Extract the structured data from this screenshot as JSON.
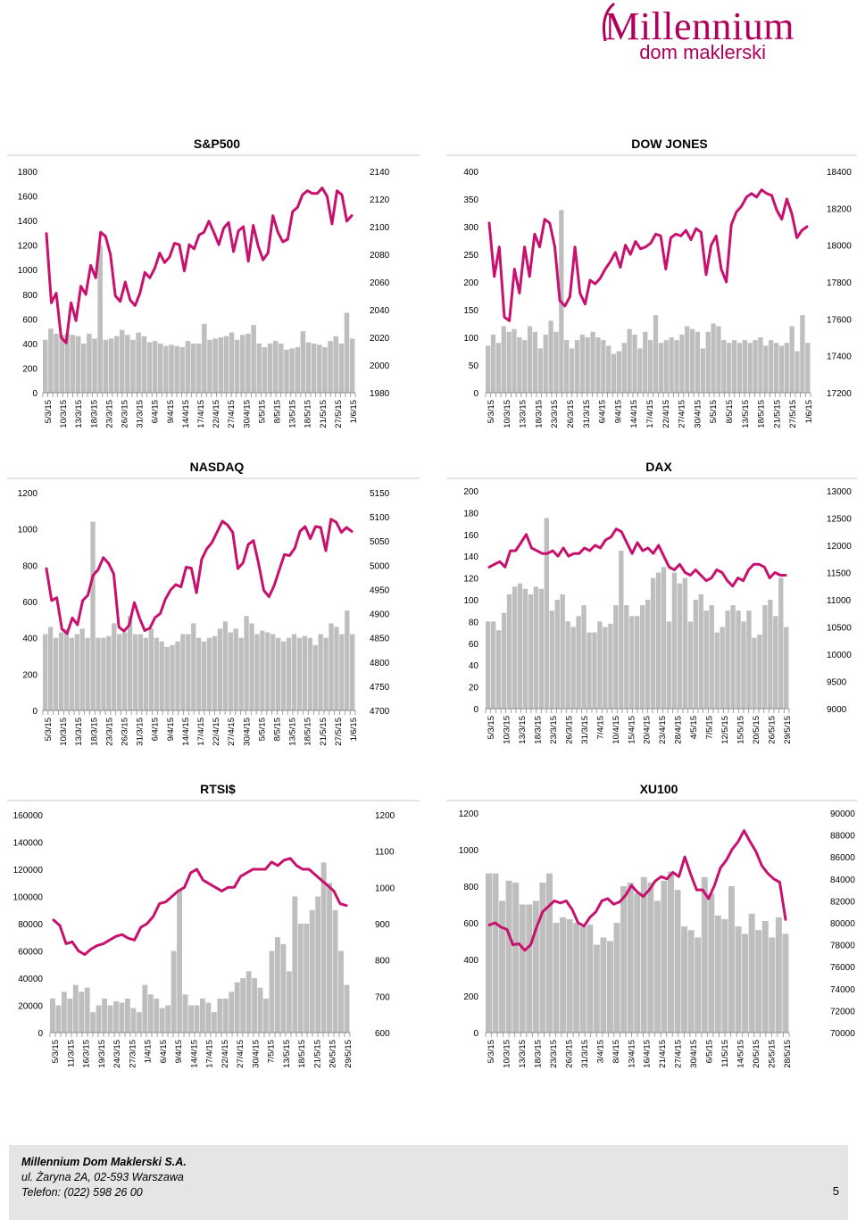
{
  "logo": {
    "brand": "Millennium",
    "sub": "dom maklerski"
  },
  "footer": {
    "company": "Millennium Dom Maklerski S.A.",
    "address": "ul. Żaryna 2A, 02-593 Warszawa",
    "phone": "Telefon: (022) 598 26 00",
    "page": "5"
  },
  "colors": {
    "line": "#c8106e",
    "bar": "#bebebe"
  },
  "chart_data": [
    {
      "id": "sp500",
      "type": "bar+line",
      "title": "S&P500",
      "left_ticks": [
        "1800",
        "1600",
        "1400",
        "1200",
        "1000",
        "800",
        "600",
        "400",
        "200",
        "0"
      ],
      "right_ticks": [
        "2140",
        "2120",
        "2100",
        "2080",
        "2060",
        "2040",
        "2020",
        "2000",
        "1980"
      ],
      "x_labels": [
        "5/3/15",
        "10/3/15",
        "13/3/15",
        "18/3/15",
        "23/3/15",
        "26/3/15",
        "31/3/15",
        "6/4/15",
        "9/4/15",
        "14/4/15",
        "17/4/15",
        "22/4/15",
        "27/4/15",
        "30/4/15",
        "5/5/15",
        "8/5/15",
        "13/5/15",
        "18/5/15",
        "21/5/15",
        "27/5/15",
        "1/6/15"
      ],
      "left_range": [
        0,
        1800
      ],
      "right_range": [
        1980,
        2140
      ],
      "bars": [
        430,
        520,
        480,
        470,
        480,
        470,
        460,
        400,
        480,
        440,
        1200,
        430,
        440,
        460,
        510,
        470,
        430,
        490,
        460,
        410,
        420,
        400,
        380,
        390,
        380,
        370,
        420,
        400,
        400,
        560,
        430,
        440,
        450,
        460,
        490,
        430,
        470,
        480,
        550,
        400,
        370,
        400,
        420,
        400,
        350,
        360,
        370,
        500,
        410,
        400,
        390,
        370,
        420,
        460,
        400,
        650,
        440
      ],
      "line": [
        2095,
        2045,
        2052,
        2020,
        2016,
        2045,
        2032,
        2057,
        2051,
        2072,
        2063,
        2096,
        2093,
        2080,
        2050,
        2046,
        2060,
        2047,
        2043,
        2052,
        2067,
        2063,
        2070,
        2081,
        2074,
        2078,
        2088,
        2087,
        2068,
        2087,
        2084,
        2094,
        2096,
        2104,
        2096,
        2087,
        2099,
        2103,
        2082,
        2097,
        2100,
        2075,
        2101,
        2086,
        2076,
        2081,
        2108,
        2096,
        2089,
        2091,
        2111,
        2114,
        2123,
        2126,
        2124,
        2124,
        2128,
        2122,
        2102,
        2126,
        2123,
        2104,
        2108
      ],
      "x_range_steps": 63
    },
    {
      "id": "dowjones",
      "type": "bar+line",
      "title": "DOW JONES",
      "left_ticks": [
        "400",
        "350",
        "300",
        "250",
        "200",
        "150",
        "100",
        "50",
        "0"
      ],
      "right_ticks": [
        "18400",
        "18200",
        "18000",
        "17800",
        "17600",
        "17400",
        "17200"
      ],
      "x_labels": [
        "5/3/15",
        "10/3/15",
        "13/3/15",
        "18/3/15",
        "23/3/15",
        "26/3/15",
        "31/3/15",
        "6/4/15",
        "9/4/15",
        "14/4/15",
        "17/4/15",
        "22/4/15",
        "27/4/15",
        "30/4/15",
        "5/5/15",
        "8/5/15",
        "13/5/15",
        "18/5/15",
        "21/5/15",
        "27/5/15",
        "1/6/15"
      ],
      "left_range": [
        0,
        400
      ],
      "right_range": [
        17200,
        18400
      ],
      "bars": [
        85,
        105,
        90,
        120,
        110,
        115,
        100,
        95,
        120,
        110,
        80,
        105,
        130,
        110,
        330,
        95,
        80,
        95,
        105,
        100,
        110,
        100,
        95,
        85,
        70,
        75,
        90,
        115,
        105,
        80,
        110,
        95,
        140,
        90,
        95,
        100,
        95,
        105,
        120,
        115,
        110,
        80,
        110,
        125,
        120,
        95,
        90,
        95,
        90,
        95,
        90,
        95,
        100,
        85,
        95,
        90,
        85,
        90,
        120,
        75,
        140,
        90
      ],
      "line": [
        18120,
        17830,
        17990,
        17610,
        17590,
        17870,
        17740,
        17990,
        17830,
        18060,
        17990,
        18140,
        18120,
        17990,
        17700,
        17670,
        17720,
        17990,
        17740,
        17680,
        17810,
        17790,
        17820,
        17870,
        17910,
        17960,
        17880,
        18000,
        17950,
        18020,
        17980,
        17990,
        18010,
        18060,
        18050,
        17870,
        18040,
        18060,
        18050,
        18080,
        18030,
        18090,
        18070,
        17840,
        18000,
        18050,
        17870,
        17800,
        18110,
        18180,
        18210,
        18260,
        18280,
        18260,
        18300,
        18280,
        18270,
        18190,
        18140,
        18250,
        18170,
        18040,
        18080,
        18100
      ],
      "x_range_steps": 64
    },
    {
      "id": "nasdaq",
      "type": "bar+line",
      "title": "NASDAQ",
      "left_ticks": [
        "1200",
        "1000",
        "800",
        "600",
        "400",
        "200",
        "0"
      ],
      "right_ticks": [
        "5150",
        "5100",
        "5050",
        "5000",
        "4950",
        "4900",
        "4850",
        "4800",
        "4750",
        "4700"
      ],
      "x_labels": [
        "5/3/15",
        "10/3/15",
        "13/3/15",
        "18/3/15",
        "23/3/15",
        "26/3/15",
        "31/3/15",
        "6/4/15",
        "9/4/15",
        "14/4/15",
        "17/4/15",
        "22/4/15",
        "27/4/15",
        "30/4/15",
        "5/5/15",
        "8/5/15",
        "13/5/15",
        "18/5/15",
        "21/5/15",
        "27/5/15",
        "1/6/15"
      ],
      "left_range": [
        0,
        1200
      ],
      "right_range": [
        4700,
        5150
      ],
      "bars": [
        420,
        460,
        400,
        430,
        450,
        400,
        420,
        450,
        400,
        1040,
        400,
        400,
        410,
        480,
        420,
        430,
        520,
        420,
        420,
        400,
        450,
        400,
        380,
        350,
        360,
        380,
        420,
        420,
        480,
        400,
        380,
        400,
        410,
        450,
        490,
        430,
        450,
        400,
        520,
        480,
        420,
        440,
        430,
        420,
        400,
        380,
        400,
        420,
        400,
        410,
        400,
        360,
        420,
        400,
        480,
        460,
        420,
        550,
        420
      ],
      "line": [
        4993,
        4927,
        4933,
        4868,
        4859,
        4891,
        4877,
        4927,
        4938,
        4979,
        4991,
        5016,
        5004,
        4982,
        4872,
        4864,
        4876,
        4923,
        4891,
        4865,
        4870,
        4892,
        4900,
        4930,
        4949,
        4960,
        4955,
        4996,
        4994,
        4943,
        5012,
        5034,
        5047,
        5069,
        5091,
        5083,
        5068,
        4993,
        5005,
        5043,
        5051,
        5003,
        4948,
        4935,
        4958,
        4990,
        5022,
        5020,
        5035,
        5070,
        5080,
        5055,
        5080,
        5078,
        5030,
        5095,
        5089,
        5068,
        5078,
        5070
      ],
      "x_range_steps": 60
    },
    {
      "id": "dax",
      "type": "bar+line",
      "title": "DAX",
      "left_ticks": [
        "200",
        "180",
        "160",
        "140",
        "120",
        "100",
        "80",
        "60",
        "40",
        "20",
        "0"
      ],
      "right_ticks": [
        "13000",
        "12500",
        "12000",
        "11500",
        "11000",
        "10500",
        "10000",
        "9500",
        "9000"
      ],
      "x_labels": [
        "5/3/15",
        "10/3/15",
        "13/3/15",
        "18/3/15",
        "23/3/15",
        "26/3/15",
        "31/3/15",
        "7/4/15",
        "10/4/15",
        "15/4/15",
        "20/4/15",
        "23/4/15",
        "28/4/15",
        "4/5/15",
        "7/5/15",
        "12/5/15",
        "15/5/15",
        "20/5/15",
        "26/5/15",
        "29/5/15"
      ],
      "left_range": [
        0,
        200
      ],
      "right_range": [
        9000,
        13000
      ],
      "bars": [
        80,
        80,
        72,
        88,
        105,
        112,
        115,
        110,
        105,
        112,
        110,
        175,
        90,
        100,
        105,
        80,
        75,
        85,
        95,
        70,
        70,
        80,
        75,
        78,
        95,
        145,
        95,
        85,
        85,
        95,
        100,
        120,
        125,
        130,
        80,
        125,
        115,
        120,
        80,
        100,
        105,
        90,
        95,
        70,
        75,
        90,
        95,
        90,
        80,
        90,
        65,
        68,
        95,
        100,
        85,
        120,
        75
      ],
      "line": [
        11600,
        11650,
        11700,
        11600,
        11900,
        11900,
        12050,
        12200,
        11950,
        11900,
        11850,
        11850,
        11900,
        11800,
        11950,
        11800,
        11850,
        11850,
        11950,
        11900,
        12000,
        11950,
        12100,
        12150,
        12300,
        12250,
        12050,
        11850,
        12050,
        11900,
        11950,
        11850,
        12000,
        11800,
        11600,
        11550,
        11650,
        11500,
        11450,
        11550,
        11450,
        11350,
        11400,
        11550,
        11500,
        11350,
        11250,
        11400,
        11350,
        11550,
        11650,
        11650,
        11600,
        11400,
        11500,
        11450,
        11450
      ],
      "x_range_steps": 60
    },
    {
      "id": "rtsi",
      "type": "bar+line",
      "title": "RTSI$",
      "left_ticks": [
        "160000",
        "140000",
        "120000",
        "100000",
        "80000",
        "60000",
        "40000",
        "20000",
        "0"
      ],
      "right_ticks": [
        "1200",
        "1100",
        "1000",
        "900",
        "800",
        "700",
        "600"
      ],
      "x_labels": [
        "5/3/15",
        "11/3/15",
        "16/3/15",
        "19/3/15",
        "24/3/15",
        "27/3/15",
        "1/4/15",
        "6/4/15",
        "9/4/15",
        "14/4/15",
        "17/4/15",
        "22/4/15",
        "27/4/15",
        "30/4/15",
        "7/5/15",
        "13/5/15",
        "18/5/15",
        "21/5/15",
        "26/5/15",
        "29/5/15"
      ],
      "left_range": [
        0,
        160000
      ],
      "right_range": [
        600,
        1200
      ],
      "bars": [
        25000,
        20000,
        30000,
        25000,
        35000,
        30000,
        33000,
        15000,
        20000,
        25000,
        20000,
        23000,
        22000,
        25000,
        18000,
        15000,
        35000,
        28000,
        25000,
        18000,
        20000,
        60000,
        105000,
        28000,
        20000,
        20000,
        25000,
        22000,
        15000,
        25000,
        25000,
        30000,
        37000,
        40000,
        45000,
        40000,
        33000,
        25000,
        60000,
        70000,
        65000,
        45000,
        100000,
        80000,
        80000,
        90000,
        100000,
        125000,
        110000,
        90000,
        60000,
        35000
      ],
      "line": [
        910,
        895,
        845,
        850,
        825,
        815,
        830,
        840,
        845,
        855,
        865,
        870,
        860,
        855,
        890,
        900,
        920,
        955,
        960,
        975,
        990,
        1000,
        1040,
        1050,
        1020,
        1010,
        1000,
        990,
        1000,
        1000,
        1030,
        1040,
        1050,
        1050,
        1050,
        1070,
        1060,
        1075,
        1080,
        1060,
        1050,
        1050,
        1035,
        1020,
        1005,
        990,
        955,
        950
      ],
      "x_range_steps": 56
    },
    {
      "id": "xu100",
      "type": "bar+line",
      "title": "XU100",
      "left_ticks": [
        "1200",
        "1000",
        "800",
        "600",
        "400",
        "200",
        "0"
      ],
      "right_ticks": [
        "90000",
        "88000",
        "86000",
        "84000",
        "82000",
        "80000",
        "78000",
        "76000",
        "74000",
        "72000",
        "70000"
      ],
      "x_labels": [
        "5/3/15",
        "10/3/15",
        "13/3/15",
        "18/3/15",
        "23/3/15",
        "26/3/15",
        "31/3/15",
        "3/4/15",
        "8/4/15",
        "13/4/15",
        "16/4/15",
        "21/4/15",
        "27/4/15",
        "30/4/15",
        "6/5/15",
        "11/5/15",
        "14/5/15",
        "20/5/15",
        "25/5/15",
        "28/5/15"
      ],
      "left_range": [
        0,
        1200
      ],
      "right_range": [
        70000,
        90000
      ],
      "bars": [
        870,
        870,
        720,
        830,
        820,
        700,
        700,
        720,
        820,
        870,
        600,
        630,
        620,
        600,
        580,
        590,
        480,
        520,
        500,
        600,
        800,
        820,
        760,
        850,
        820,
        720,
        830,
        880,
        780,
        580,
        560,
        520,
        850,
        760,
        640,
        620,
        800,
        580,
        540,
        650,
        560,
        610,
        520,
        630,
        540
      ],
      "line": [
        79800,
        80000,
        79600,
        79400,
        78000,
        78100,
        77500,
        78000,
        79600,
        81000,
        81500,
        82000,
        81800,
        82000,
        81200,
        80000,
        79700,
        80500,
        81000,
        82000,
        82200,
        81700,
        81900,
        82500,
        83400,
        82800,
        82400,
        83000,
        83800,
        84200,
        84000,
        84600,
        84200,
        86000,
        84400,
        83000,
        83000,
        82200,
        83400,
        85000,
        85700,
        86700,
        87400,
        88400,
        87400,
        86500,
        85200,
        84500,
        84000,
        83700,
        80300
      ],
      "x_range_steps": 52
    }
  ]
}
